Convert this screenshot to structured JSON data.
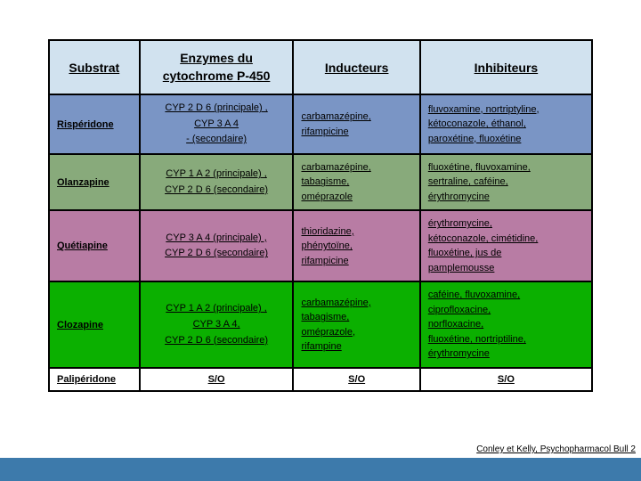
{
  "headers": {
    "substrat": "Substrat",
    "enzymes_l1": "Enzymes du",
    "enzymes_l2": "cytochrome P-450",
    "inducteurs": "Inducteurs",
    "inhibiteurs": "Inhibiteurs"
  },
  "rows": {
    "risperidone": {
      "name": "Rispéridone",
      "enz_p": "CYP 2 D 6 (principale) ,",
      "enz_m": "CYP 3 A 4",
      "enz_s": "- (secondaire)",
      "ind": [
        "carbamazépine,",
        "rifampicine"
      ],
      "inh": [
        "fluvoxamine, nortriptyline,",
        "kétoconazole, éthanol,",
        "paroxétine, fluoxétine"
      ]
    },
    "olanzapine": {
      "name": "Olanzapine",
      "enz_p": "CYP 1 A 2 (principale) ,",
      "enz_s": "CYP 2 D 6 (secondaire)",
      "ind": [
        "carbamazépine,",
        "tabagisme,",
        "oméprazole"
      ],
      "inh": [
        "fluoxétine, fluvoxamine,",
        "sertraline, caféine,",
        "érythromycine"
      ]
    },
    "quetiapine": {
      "name": "Quétiapine",
      "enz_p": "CYP 3 A 4 (principale) ,",
      "enz_s": "CYP 2 D 6 (secondaire)",
      "ind": [
        "thioridazine,",
        "phénytoïne,",
        "rifampicine"
      ],
      "inh": [
        "érythromycine,",
        "kétoconazole, cimétidine,",
        "fluoxétine, jus de",
        "pamplemousse"
      ]
    },
    "clozapine": {
      "name": "Clozapine",
      "enz_p": "CYP 1 A 2 (principale) ,",
      "enz_m": "CYP 3 A 4,",
      "enz_s": "CYP 2 D 6 (secondaire)",
      "ind": [
        "carbamazépine,",
        "tabagisme,",
        "oméprazole,",
        "rifampine"
      ],
      "inh": [
        "caféine, fluvoxamine,",
        "ciprofloxacine,",
        "norfloxacine,",
        "fluoxétine, nortriptiline,",
        "érythromycine"
      ]
    },
    "paliperidone": {
      "name": "Palipéridone",
      "so": "S/O"
    }
  },
  "citation": "Conley et Kelly, Psychopharmacol Bull 2",
  "colors": {
    "header_bg": "#d1e2ef",
    "risp_bg": "#7a95c5",
    "olan_bg": "#88aa7b",
    "quet_bg": "#b87ca4",
    "cloz_bg": "#0bb000",
    "pali_bg": "#ffffff",
    "footer_bg": "#3d7aab"
  }
}
